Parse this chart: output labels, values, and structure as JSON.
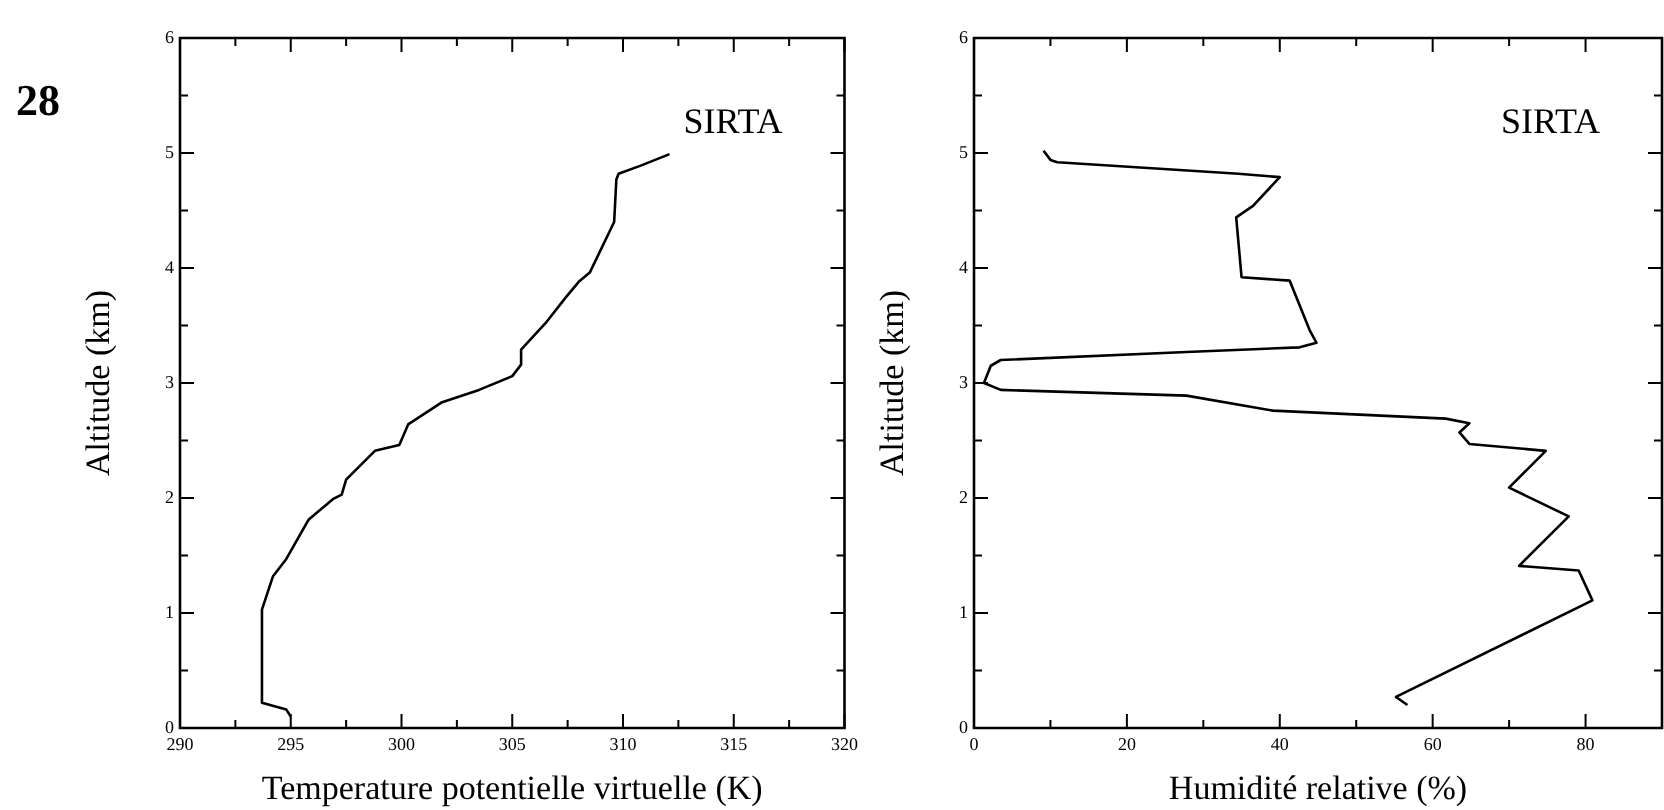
{
  "chart_data": [
    {
      "type": "line",
      "title": "28",
      "xlabel": "Temperature potentielle virtuelle (K)",
      "ylabel": "Altitude (km)",
      "annotations": [
        "SIRTA"
      ],
      "xlim": [
        290,
        320
      ],
      "xticks": [
        290,
        {
          "value": 292.5,
          "label": null
        },
        295,
        {
          "value": 297.5,
          "label": null
        },
        300,
        {
          "value": 302.5,
          "label": null
        },
        305,
        {
          "value": 307.5,
          "label": null
        },
        310,
        {
          "value": 312.5,
          "label": null
        },
        315,
        {
          "value": 317.5,
          "label": null
        },
        320
      ],
      "ylim": [
        0,
        6
      ],
      "yticks": [
        0,
        {
          "value": 0.5,
          "label": null
        },
        1,
        {
          "value": 1.5,
          "label": null
        },
        2,
        {
          "value": 2.5,
          "label": null
        },
        3,
        {
          "value": 3.5,
          "label": null
        },
        4,
        {
          "value": 4.5,
          "label": null
        },
        5,
        {
          "value": 5.5,
          "label": null
        },
        6
      ],
      "grid": false,
      "legend": false,
      "line_style": "solid",
      "series": [
        {
          "color": "#000000",
          "x": [
            295,
            294.8,
            293.7,
            293.7,
            294.2,
            294.8,
            295.8,
            296.9,
            297.3,
            297.5,
            298.8,
            299.9,
            300.3,
            301.8,
            303.5,
            305,
            305.4,
            305.4,
            306.5,
            307.4,
            308,
            308.5,
            309.6,
            309.7,
            309.8,
            310.8,
            312.1
          ],
          "values": [
            0.1,
            0.16,
            0.22,
            1.03,
            1.32,
            1.47,
            1.81,
            1.99,
            2.03,
            2.16,
            2.41,
            2.46,
            2.64,
            2.83,
            2.94,
            3.06,
            3.16,
            3.29,
            3.52,
            3.74,
            3.88,
            3.96,
            4.4,
            4.77,
            4.82,
            4.89,
            4.99
          ]
        }
      ]
    },
    {
      "type": "line",
      "xlabel": "Humidité relative (%)",
      "ylabel": "Altitude (km)",
      "annotations": [
        "SIRTA"
      ],
      "xlim": [
        0,
        90
      ],
      "xticks": [
        0,
        {
          "value": 10,
          "label": null
        },
        20,
        {
          "value": 30,
          "label": null
        },
        40,
        {
          "value": 50,
          "label": null
        },
        60,
        {
          "value": 70,
          "label": null
        },
        80
      ],
      "ylim": [
        0,
        6
      ],
      "yticks": [
        0,
        {
          "value": 0.5,
          "label": null
        },
        1,
        {
          "value": 1.5,
          "label": null
        },
        2,
        {
          "value": 2.5,
          "label": null
        },
        3,
        {
          "value": 3.5,
          "label": null
        },
        4,
        {
          "value": 4.5,
          "label": null
        },
        5,
        {
          "value": 5.5,
          "label": null
        },
        6
      ],
      "grid": false,
      "legend": false,
      "line_style": "solid",
      "series": [
        {
          "color": "#000000",
          "x": [
            56.7,
            55.2,
            80.9,
            79.1,
            71.3,
            77.8,
            70,
            74.8,
            64.8,
            63.5,
            64.8,
            61.7,
            39.1,
            27.8,
            3.5,
            1.3,
            2.2,
            3.5,
            27.8,
            42.6,
            44.8,
            43.9,
            41.3,
            35,
            34.3,
            36.5,
            40,
            34.6,
            27.4,
            10.9,
            10,
            9.1
          ],
          "values": [
            0.2,
            0.27,
            1.11,
            1.37,
            1.41,
            1.84,
            2.09,
            2.41,
            2.47,
            2.57,
            2.65,
            2.69,
            2.76,
            2.89,
            2.94,
            3.0,
            3.15,
            3.2,
            3.27,
            3.31,
            3.35,
            3.46,
            3.89,
            3.92,
            4.44,
            4.54,
            4.79,
            4.82,
            4.85,
            4.92,
            4.94,
            5.02
          ]
        }
      ]
    }
  ]
}
